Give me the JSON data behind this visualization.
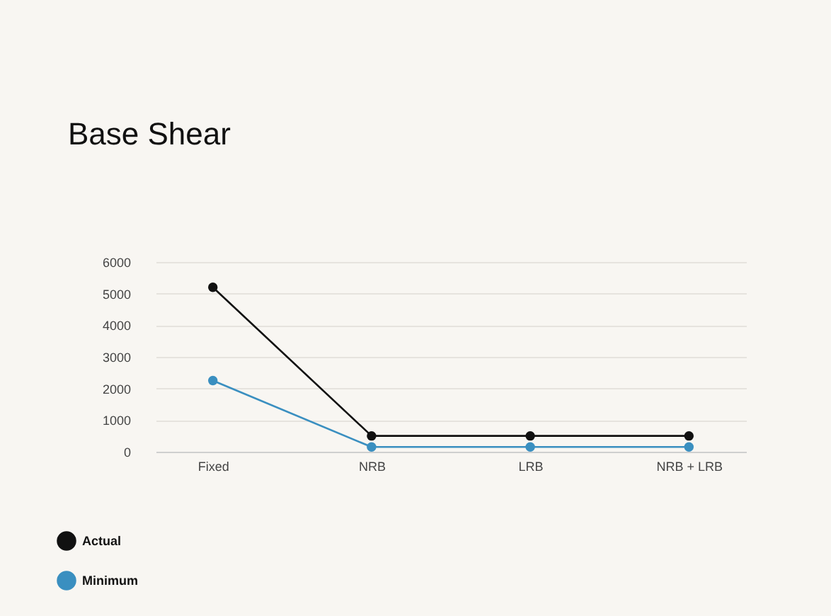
{
  "chart_data": {
    "type": "line",
    "title": "Base Shear",
    "categories": [
      "Fixed",
      "NRB",
      "LRB",
      "NRB + LRB"
    ],
    "series": [
      {
        "name": "Actual",
        "color": "#111111",
        "values": [
          5200,
          500,
          500,
          500
        ]
      },
      {
        "name": "Minimum",
        "color": "#3a8fc0",
        "values": [
          2250,
          150,
          150,
          150
        ]
      }
    ],
    "ylim": [
      0,
      6000
    ],
    "yticks": [
      0,
      1000,
      2000,
      3000,
      4000,
      5000,
      6000
    ],
    "grid": "y",
    "legend": "bottom left",
    "marker": "circle",
    "line_style": "solid"
  }
}
